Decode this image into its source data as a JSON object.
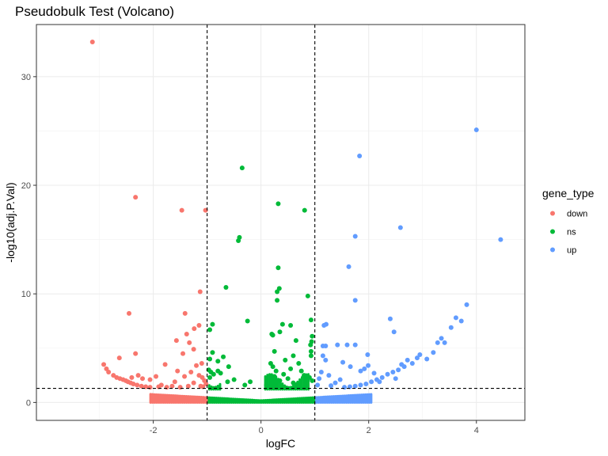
{
  "chart_data": {
    "type": "scatter",
    "title": "Pseudobulk Test (Volcano)",
    "xlabel": "logFC",
    "ylabel": "-log10(adj.P.Val)",
    "xlim": [
      -4.17,
      4.9
    ],
    "ylim": [
      -1.65,
      34.8
    ],
    "x_ticks": [
      -2,
      0,
      2,
      4
    ],
    "y_ticks": [
      0,
      10,
      20,
      30
    ],
    "x_tick_labels": [
      "-2",
      "0",
      "2",
      "4"
    ],
    "y_tick_labels": [
      "0",
      "10",
      "20",
      "30"
    ],
    "grid": true,
    "thresholds": {
      "vlines": [
        -1,
        1
      ],
      "hline": 1.3
    },
    "legend": {
      "title": "gene_type",
      "placement": "right",
      "entries": [
        {
          "label": "down",
          "color": "#F8766D"
        },
        {
          "label": "ns",
          "color": "#00BA38"
        },
        {
          "label": "up",
          "color": "#619CFF"
        }
      ]
    },
    "series": [
      {
        "name": "down",
        "color": "#F8766D",
        "points": [
          [
            -3.13,
            33.2
          ],
          [
            -2.33,
            18.9
          ],
          [
            -1.47,
            17.7
          ],
          [
            -1.03,
            17.7
          ],
          [
            -1.13,
            10.2
          ],
          [
            -2.45,
            8.2
          ],
          [
            -1.41,
            8.2
          ],
          [
            -1.24,
            6.8
          ],
          [
            -1.38,
            6.3
          ],
          [
            -1.57,
            5.7
          ],
          [
            -1.15,
            7.1
          ],
          [
            -1.33,
            5.5
          ],
          [
            -1.25,
            4.9
          ],
          [
            -1.45,
            4.5
          ],
          [
            -2.33,
            4.5
          ],
          [
            -2.63,
            4.1
          ],
          [
            -2.92,
            3.5
          ],
          [
            -2.87,
            3.1
          ],
          [
            -2.83,
            2.8
          ],
          [
            -2.74,
            2.5
          ],
          [
            -2.68,
            2.3
          ],
          [
            -2.62,
            2.2
          ],
          [
            -2.56,
            2.1
          ],
          [
            -2.51,
            2.0
          ],
          [
            -2.47,
            1.9
          ],
          [
            -2.42,
            1.8
          ],
          [
            -2.37,
            1.7
          ],
          [
            -2.3,
            1.6
          ],
          [
            -2.22,
            1.5
          ],
          [
            -2.14,
            1.45
          ],
          [
            -2.06,
            1.4
          ],
          [
            -2.4,
            2.3
          ],
          [
            -2.2,
            2.2
          ],
          [
            -2.06,
            2.1
          ],
          [
            -1.78,
            3.5
          ],
          [
            -1.55,
            2.9
          ],
          [
            -1.3,
            2.8
          ],
          [
            -1.15,
            2.5
          ],
          [
            -1.09,
            2.3
          ],
          [
            -1.05,
            2.0
          ],
          [
            -1.6,
            1.9
          ],
          [
            -1.2,
            3.4
          ],
          [
            -1.1,
            3.6
          ],
          [
            -1.85,
            1.6
          ],
          [
            -1.95,
            2.4
          ],
          [
            -2.28,
            2.5
          ],
          [
            -1.42,
            2.4
          ],
          [
            -1.25,
            1.8
          ],
          [
            -1.65,
            1.5
          ],
          [
            -1.35,
            1.5
          ],
          [
            -1.75,
            1.4
          ],
          [
            -1.5,
            1.4
          ],
          [
            -1.9,
            1.45
          ],
          [
            -1.12,
            1.5
          ],
          [
            -1.02,
            1.7
          ],
          [
            -1.08,
            1.45
          ]
        ]
      },
      {
        "name": "ns",
        "color": "#00BA38",
        "points": [
          [
            -0.35,
            21.6
          ],
          [
            0.32,
            18.3
          ],
          [
            0.81,
            17.7
          ],
          [
            -0.4,
            15.2
          ],
          [
            -0.42,
            14.9
          ],
          [
            0.32,
            12.4
          ],
          [
            0.34,
            10.5
          ],
          [
            0.3,
            10.2
          ],
          [
            -0.65,
            10.6
          ],
          [
            0.87,
            9.8
          ],
          [
            0.3,
            9.4
          ],
          [
            -0.25,
            7.5
          ],
          [
            -0.9,
            7.2
          ],
          [
            0.93,
            7.6
          ],
          [
            0.4,
            7.2
          ],
          [
            0.55,
            7.1
          ],
          [
            0.2,
            6.3
          ],
          [
            0.22,
            6.2
          ],
          [
            -0.95,
            6.7
          ],
          [
            0.35,
            6.5
          ],
          [
            0.95,
            6.1
          ],
          [
            0.65,
            5.7
          ],
          [
            0.94,
            5.6
          ],
          [
            0.92,
            5.3
          ],
          [
            -0.9,
            4.6
          ],
          [
            0.25,
            4.7
          ],
          [
            -0.7,
            4.2
          ],
          [
            0.6,
            4.3
          ],
          [
            0.45,
            3.9
          ],
          [
            -0.95,
            4.0
          ],
          [
            -0.8,
            3.8
          ],
          [
            0.93,
            4.7
          ],
          [
            0.93,
            4.3
          ],
          [
            0.7,
            3.6
          ],
          [
            0.22,
            3.3
          ],
          [
            0.18,
            3.6
          ],
          [
            0.55,
            3.1
          ],
          [
            -0.6,
            3.3
          ],
          [
            -0.8,
            2.9
          ],
          [
            -0.75,
            2.7
          ],
          [
            -0.93,
            2.8
          ],
          [
            0.28,
            2.9
          ],
          [
            0.8,
            2.5
          ],
          [
            -0.5,
            2.1
          ],
          [
            0.5,
            2.2
          ],
          [
            0.9,
            2.3
          ],
          [
            -0.88,
            2.6
          ],
          [
            -0.2,
            1.9
          ],
          [
            0.25,
            2.4
          ],
          [
            0.1,
            1.6
          ],
          [
            -0.3,
            1.6
          ],
          [
            0.6,
            1.8
          ],
          [
            0.95,
            2.0
          ],
          [
            -0.95,
            2.3
          ],
          [
            0.42,
            2.6
          ],
          [
            -0.62,
            1.9
          ],
          [
            -0.97,
            3.0
          ],
          [
            0.75,
            2.9
          ],
          [
            0.35,
            2.0
          ],
          [
            0.68,
            1.7
          ]
        ]
      },
      {
        "name": "up",
        "color": "#619CFF",
        "points": [
          [
            4.0,
            25.1
          ],
          [
            1.83,
            22.7
          ],
          [
            2.59,
            16.1
          ],
          [
            4.45,
            15.0
          ],
          [
            1.75,
            15.3
          ],
          [
            1.63,
            12.5
          ],
          [
            1.75,
            9.4
          ],
          [
            3.82,
            9.0
          ],
          [
            3.72,
            7.5
          ],
          [
            3.62,
            7.8
          ],
          [
            3.53,
            6.9
          ],
          [
            3.35,
            5.9
          ],
          [
            2.4,
            7.7
          ],
          [
            3.41,
            5.5
          ],
          [
            3.28,
            5.5
          ],
          [
            2.47,
            6.5
          ],
          [
            1.21,
            7.2
          ],
          [
            1.17,
            7.1
          ],
          [
            1.42,
            5.3
          ],
          [
            1.6,
            5.3
          ],
          [
            1.2,
            5.2
          ],
          [
            1.15,
            5.2
          ],
          [
            1.75,
            5.3
          ],
          [
            1.98,
            4.4
          ],
          [
            3.08,
            4.0
          ],
          [
            2.95,
            4.4
          ],
          [
            2.9,
            4.1
          ],
          [
            2.81,
            3.6
          ],
          [
            2.66,
            3.3
          ],
          [
            2.55,
            3.0
          ],
          [
            2.45,
            2.8
          ],
          [
            2.35,
            2.6
          ],
          [
            2.25,
            2.3
          ],
          [
            2.15,
            2.1
          ],
          [
            2.05,
            1.9
          ],
          [
            1.95,
            1.7
          ],
          [
            1.85,
            1.6
          ],
          [
            1.75,
            1.5
          ],
          [
            1.65,
            1.45
          ],
          [
            1.55,
            1.4
          ],
          [
            1.92,
            3.1
          ],
          [
            1.99,
            3.4
          ],
          [
            2.61,
            3.5
          ],
          [
            1.47,
            2.1
          ],
          [
            1.26,
            2.5
          ],
          [
            1.52,
            3.7
          ],
          [
            1.2,
            3.9
          ],
          [
            1.15,
            4.3
          ],
          [
            2.1,
            2.7
          ],
          [
            1.38,
            1.8
          ],
          [
            1.08,
            2.2
          ],
          [
            1.3,
            1.55
          ],
          [
            2.72,
            3.9
          ],
          [
            2.2,
            1.9
          ],
          [
            1.85,
            2.9
          ],
          [
            1.05,
            1.6
          ],
          [
            1.66,
            3.3
          ],
          [
            1.12,
            2.8
          ],
          [
            2.5,
            2.2
          ],
          [
            3.2,
            4.6
          ]
        ]
      }
    ]
  }
}
